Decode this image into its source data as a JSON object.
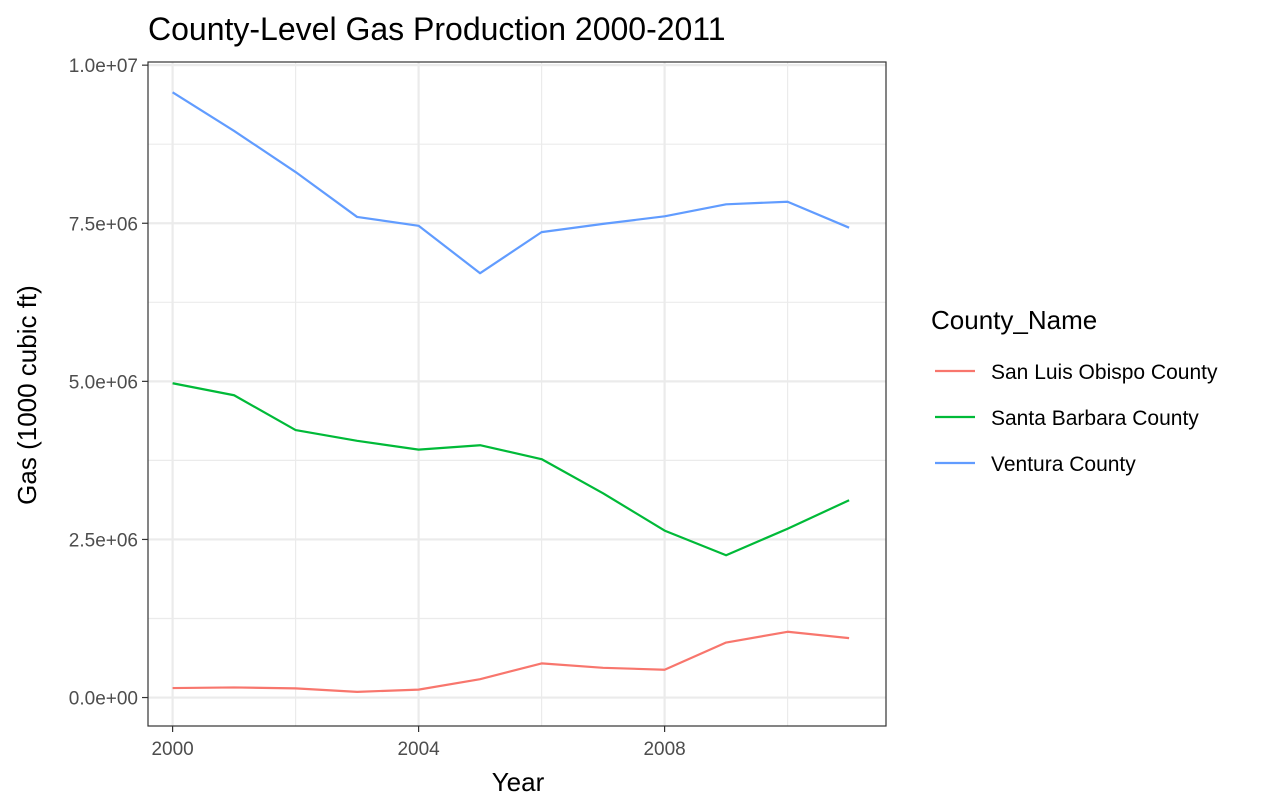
{
  "chart_data": {
    "type": "line",
    "title": "County-Level Gas Production 2000-2011",
    "xlabel": "Year",
    "ylabel": "Gas (1000 cubic ft)",
    "xlim": [
      1999.6,
      2011.6
    ],
    "ylim": [
      -450000,
      10050000
    ],
    "x_ticks": [
      2000,
      2004,
      2008
    ],
    "x_tick_labels": [
      "2000",
      "2004",
      "2008"
    ],
    "y_ticks": [
      0,
      2500000,
      5000000,
      7500000,
      10000000
    ],
    "y_tick_labels": [
      "0.0e+00",
      "2.5e+06",
      "5.0e+06",
      "7.5e+06",
      "1.0e+07"
    ],
    "grid": true,
    "legend": {
      "title": "County_Name",
      "position": "right"
    },
    "x": [
      2000,
      2001,
      2002,
      2003,
      2004,
      2005,
      2006,
      2007,
      2008,
      2009,
      2010,
      2011
    ],
    "series": [
      {
        "name": "San Luis Obispo County",
        "color": "#F8766D",
        "values": [
          150000,
          160000,
          145000,
          90000,
          125000,
          290000,
          540000,
          470000,
          440000,
          870000,
          1040000,
          940000
        ]
      },
      {
        "name": "Santa Barbara County",
        "color": "#00BA38",
        "values": [
          4970000,
          4780000,
          4230000,
          4060000,
          3920000,
          3990000,
          3770000,
          3230000,
          2640000,
          2250000,
          2670000,
          3120000
        ]
      },
      {
        "name": "Ventura County",
        "color": "#619CFF",
        "values": [
          9570000,
          8960000,
          8310000,
          7600000,
          7460000,
          6710000,
          7360000,
          7490000,
          7610000,
          7800000,
          7840000,
          7430000
        ]
      }
    ]
  }
}
